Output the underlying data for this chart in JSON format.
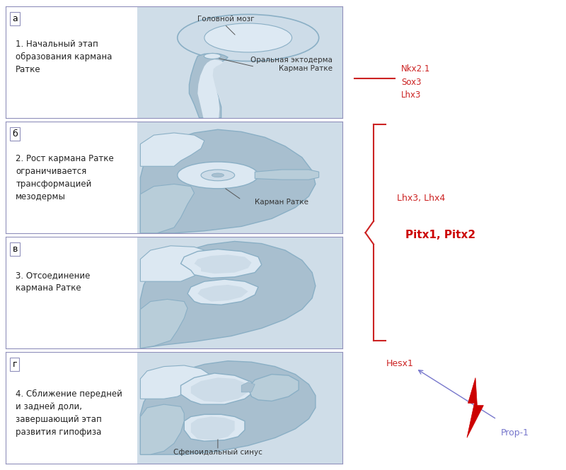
{
  "background_color": "#ffffff",
  "panel_border_color": "#9090bb",
  "panel_bg_color": "#ffffff",
  "image_bg": "#cfdde8",
  "panels": [
    {
      "label": "а",
      "text": "1. Начальный этап\nобразования кармана\nРатке",
      "ann1_text": "Головной мозг",
      "ann2_text": "Оральная эктодерма\nКарман Ратке"
    },
    {
      "label": "б",
      "text": "2. Рост кармана Ратке\nограничивается\nтрансформацией\nмезодермы",
      "ann1_text": "Карман Ратке",
      "ann2_text": ""
    },
    {
      "label": "в",
      "text": "3. Отсоединение\nкармана Ратке",
      "ann1_text": "",
      "ann2_text": ""
    },
    {
      "label": "г",
      "text": "4. Сближение передней\nи задней доли,\nзавершающий этап\nразвития гипофиза",
      "ann1_text": "Сфеноидальный синус",
      "ann2_text": ""
    }
  ],
  "right": {
    "line_color": "#cc2222",
    "top_labels": [
      "Nkx2.1",
      "Sox3",
      "Lhx3"
    ],
    "top_label_color": "#cc2222",
    "bracket_color": "#cc2222",
    "pitx_text": "Pitx1, Pitx2",
    "pitx_color": "#cc0000",
    "lhx_text": "Lhx3, Lhx4",
    "lhx_color": "#cc2222",
    "hesx_text": "Hesx1",
    "hesx_color": "#cc2222",
    "prop_text": "Prop-1",
    "prop_color": "#7777cc",
    "arrow_color": "#7777cc",
    "lightning_color": "#cc0000"
  }
}
